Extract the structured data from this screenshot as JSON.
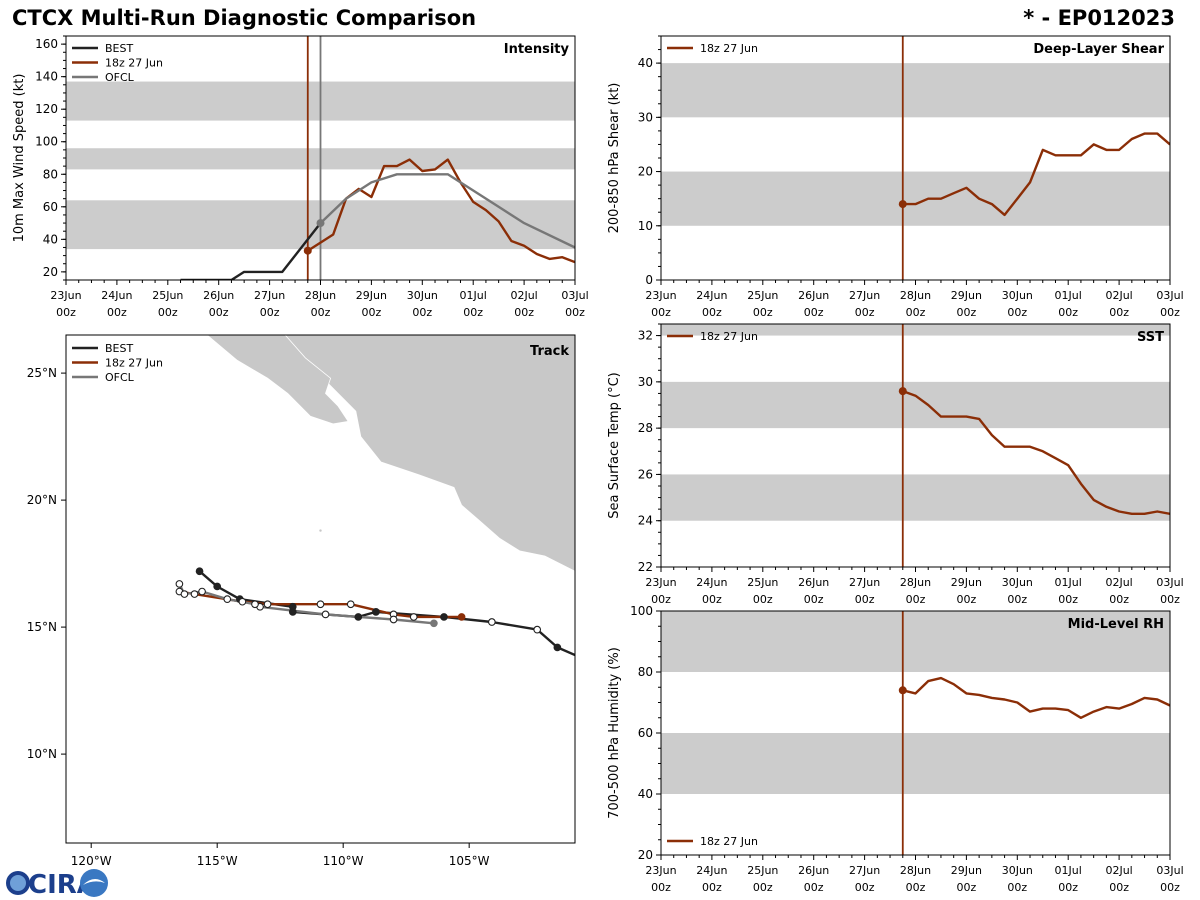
{
  "header": {
    "title_left": "CTCX Multi-Run Diagnostic Comparison",
    "title_right": "* - EP012023",
    "logo_text": "CIRA"
  },
  "colors": {
    "best": "#222222",
    "run": "#8b2e07",
    "ofcl": "#777777",
    "band": "#cccccc",
    "land": "#c8c8c8"
  },
  "legend": {
    "best": "BEST",
    "run": "18z 27 Jun",
    "ofcl": "OFCL"
  },
  "time_axis": {
    "ticks": [
      {
        "day": 0,
        "top": "23Jun",
        "bottom": "00z"
      },
      {
        "day": 1,
        "top": "24Jun",
        "bottom": "00z"
      },
      {
        "day": 2,
        "top": "25Jun",
        "bottom": "00z"
      },
      {
        "day": 3,
        "top": "26Jun",
        "bottom": "00z"
      },
      {
        "day": 4,
        "top": "27Jun",
        "bottom": "00z"
      },
      {
        "day": 5,
        "top": "28Jun",
        "bottom": "00z"
      },
      {
        "day": 6,
        "top": "29Jun",
        "bottom": "00z"
      },
      {
        "day": 7,
        "top": "30Jun",
        "bottom": "00z"
      },
      {
        "day": 8,
        "top": "01Jul",
        "bottom": "00z"
      },
      {
        "day": 9,
        "top": "02Jul",
        "bottom": "00z"
      },
      {
        "day": 10,
        "top": "03Jul",
        "bottom": "00z"
      }
    ],
    "note": "x values are days since 23Jun 00z"
  },
  "chart_data": [
    {
      "id": "intensity",
      "type": "line",
      "title": "Intensity",
      "ylabel": "10m Max Wind Speed (kt)",
      "xlim": [
        0,
        10
      ],
      "ylim": [
        15,
        165
      ],
      "yticks": [
        20,
        40,
        60,
        80,
        100,
        120,
        140,
        160
      ],
      "bands": [
        [
          34,
          64
        ],
        [
          83,
          96
        ],
        [
          113,
          137
        ]
      ],
      "vlines": [
        {
          "x": 4.75,
          "series": "run"
        },
        {
          "x": 5.0,
          "series": "ofcl"
        }
      ],
      "legend": [
        "best",
        "run",
        "ofcl"
      ],
      "series": [
        {
          "name": "BEST",
          "key": "best",
          "markers": false,
          "x": [
            2.25,
            3.25,
            3.5,
            4.25,
            5.0
          ],
          "y": [
            15,
            15,
            20,
            20,
            50
          ]
        },
        {
          "name": "18z 27 Jun",
          "key": "run",
          "markers": false,
          "start_dot": true,
          "x": [
            4.75,
            5.0,
            5.25,
            5.5,
            5.75,
            6.0,
            6.25,
            6.5,
            6.75,
            7.0,
            7.25,
            7.5,
            7.75,
            8.0,
            8.25,
            8.5,
            8.75,
            9.0,
            9.25,
            9.5,
            9.75,
            10.0
          ],
          "y": [
            33,
            38,
            43,
            65,
            71,
            66,
            85,
            85,
            89,
            82,
            83,
            89,
            75,
            63,
            58,
            51,
            39,
            36,
            31,
            28,
            29,
            26
          ]
        },
        {
          "name": "OFCL",
          "key": "ofcl",
          "markers": false,
          "start_dot": true,
          "x": [
            5.0,
            5.5,
            6.0,
            6.5,
            7.5,
            8.0,
            8.5,
            9.0,
            10.0
          ],
          "y": [
            50,
            65,
            75,
            80,
            80,
            70,
            60,
            50,
            35
          ]
        }
      ]
    },
    {
      "id": "shear",
      "type": "line",
      "title": "Deep-Layer Shear",
      "ylabel": "200-850 hPa Shear (kt)",
      "xlim": [
        0,
        10
      ],
      "ylim": [
        0,
        45
      ],
      "yticks": [
        0,
        10,
        20,
        30,
        40
      ],
      "bands": [
        [
          10,
          20
        ],
        [
          30,
          40
        ]
      ],
      "vlines": [
        {
          "x": 4.75,
          "series": "run"
        }
      ],
      "legend": [
        "run"
      ],
      "series": [
        {
          "name": "18z 27 Jun",
          "key": "run",
          "markers": false,
          "start_dot": true,
          "x": [
            4.75,
            5.0,
            5.25,
            5.5,
            5.75,
            6.0,
            6.25,
            6.5,
            6.75,
            7.0,
            7.25,
            7.5,
            7.75,
            8.0,
            8.25,
            8.5,
            8.75,
            9.0,
            9.25,
            9.5,
            9.75,
            10.0
          ],
          "y": [
            14,
            14,
            15,
            15,
            16,
            17,
            15,
            14,
            12,
            15,
            18,
            24,
            23,
            23,
            23,
            25,
            24,
            24,
            26,
            27,
            27,
            25
          ]
        }
      ]
    },
    {
      "id": "sst",
      "type": "line",
      "title": "SST",
      "ylabel": "Sea Surface Temp (°C)",
      "xlim": [
        0,
        10
      ],
      "ylim": [
        22,
        32.5
      ],
      "yticks": [
        22,
        24,
        26,
        28,
        30,
        32
      ],
      "bands": [
        [
          24,
          26
        ],
        [
          28,
          30
        ],
        [
          32,
          32.5
        ]
      ],
      "vlines": [
        {
          "x": 4.75,
          "series": "run"
        }
      ],
      "legend": [
        "run"
      ],
      "series": [
        {
          "name": "18z 27 Jun",
          "key": "run",
          "markers": false,
          "start_dot": true,
          "x": [
            4.75,
            5.0,
            5.25,
            5.5,
            5.75,
            6.0,
            6.25,
            6.5,
            6.75,
            7.0,
            7.25,
            7.5,
            7.75,
            8.0,
            8.25,
            8.5,
            8.75,
            9.0,
            9.25,
            9.5,
            9.75,
            10.0
          ],
          "y": [
            29.6,
            29.4,
            29.0,
            28.5,
            28.5,
            28.5,
            28.4,
            27.7,
            27.2,
            27.2,
            27.2,
            27.0,
            26.7,
            26.4,
            25.6,
            24.9,
            24.6,
            24.4,
            24.3,
            24.3,
            24.4,
            24.3
          ]
        }
      ]
    },
    {
      "id": "rh",
      "type": "line",
      "title": "Mid-Level RH",
      "ylabel": "700-500 hPa Humidity (%)",
      "xlim": [
        0,
        10
      ],
      "ylim": [
        20,
        100
      ],
      "yticks": [
        20,
        40,
        60,
        80,
        100
      ],
      "bands": [
        [
          40,
          60
        ],
        [
          80,
          100
        ]
      ],
      "vlines": [
        {
          "x": 4.75,
          "series": "run"
        }
      ],
      "legend": [
        "run"
      ],
      "legend_bottom": true,
      "series": [
        {
          "name": "18z 27 Jun",
          "key": "run",
          "markers": false,
          "start_dot": true,
          "x": [
            4.75,
            5.0,
            5.25,
            5.5,
            5.75,
            6.0,
            6.25,
            6.5,
            6.75,
            7.0,
            7.25,
            7.5,
            7.75,
            8.0,
            8.25,
            8.5,
            8.75,
            9.0,
            9.25,
            9.5,
            9.75,
            10.0
          ],
          "y": [
            74,
            73,
            77,
            78,
            76,
            73,
            72.5,
            71.5,
            71,
            70,
            67,
            68,
            68,
            67.5,
            65,
            67,
            68.5,
            68,
            69.5,
            71.5,
            71,
            69
          ]
        }
      ]
    },
    {
      "id": "track",
      "type": "scatter",
      "title": "Track",
      "xlim": [
        -121,
        -100.8
      ],
      "ylim": [
        6.5,
        26.5
      ],
      "xticks": [
        {
          "v": -120,
          "label": "120°W"
        },
        {
          "v": -115,
          "label": "115°W"
        },
        {
          "v": -110,
          "label": "110°W"
        },
        {
          "v": -105,
          "label": "105°W"
        }
      ],
      "yticks": [
        {
          "v": 10,
          "label": "10°N"
        },
        {
          "v": 15,
          "label": "15°N"
        },
        {
          "v": 20,
          "label": "20°N"
        },
        {
          "v": 25,
          "label": "25°N"
        }
      ],
      "legend": [
        "best",
        "run",
        "ofcl"
      ],
      "series": [
        {
          "name": "BEST",
          "key": "best",
          "lon": [
            -100.8,
            -101.5,
            -102.3,
            -104.1,
            -106.0,
            -108.7,
            -109.4,
            -112.0,
            -112.0,
            -114.1,
            -115.0,
            -115.7
          ],
          "lat": [
            13.9,
            14.2,
            14.9,
            15.2,
            15.4,
            15.6,
            15.4,
            15.6,
            15.8,
            16.1,
            16.6,
            17.2
          ],
          "filled": [
            false,
            true,
            false,
            false,
            true,
            true,
            true,
            true,
            true,
            true,
            true,
            true
          ]
        },
        {
          "name": "18z 27 Jun",
          "key": "run",
          "lon": [
            -105.3,
            -107.2,
            -108.0,
            -109.7,
            -110.9,
            -113.0,
            -114.0,
            -115.9,
            -116.5
          ],
          "lat": [
            15.4,
            15.4,
            15.5,
            15.9,
            15.9,
            15.9,
            16.0,
            16.3,
            16.4
          ],
          "filled": [
            true,
            false,
            false,
            false,
            false,
            false,
            false,
            false,
            false
          ]
        },
        {
          "name": "OFCL",
          "key": "ofcl",
          "lon": [
            -106.4,
            -108.0,
            -110.7,
            -113.3,
            -113.5,
            -114.6,
            -115.6,
            -116.3,
            -116.5
          ],
          "lat": [
            15.15,
            15.3,
            15.5,
            15.8,
            15.9,
            16.1,
            16.4,
            16.3,
            16.7
          ],
          "filled": [
            true,
            false,
            false,
            false,
            false,
            false,
            false,
            false,
            false
          ]
        }
      ]
    }
  ]
}
